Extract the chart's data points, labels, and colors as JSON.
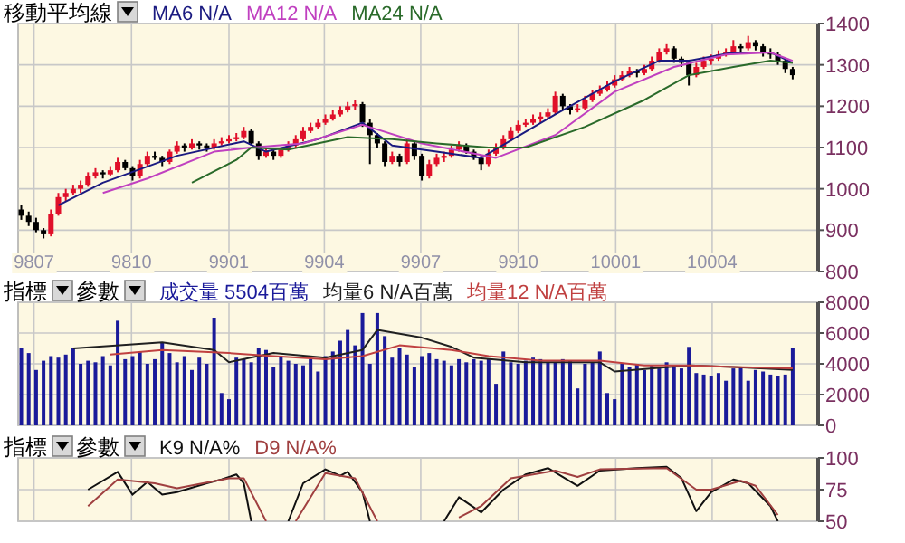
{
  "chart_data": [
    {
      "type": "candlestick",
      "title": "移動平均線",
      "legend": "top",
      "grid": true,
      "x": [
        "1998-06-19",
        "1998-06-26",
        "1998-07-03",
        "1998-07-10",
        "1998-07-17",
        "1998-07-24",
        "1998-07-31",
        "1998-08-07",
        "1998-08-14",
        "1998-08-21",
        "1998-08-28",
        "1998-09-04",
        "1998-09-11",
        "1998-09-18",
        "1998-09-25",
        "1998-10-02",
        "1998-10-09",
        "1998-10-16",
        "1998-10-23",
        "1998-10-30",
        "1998-11-06",
        "1998-11-13",
        "1998-11-20",
        "1998-11-27",
        "1998-12-04",
        "1998-12-11",
        "1998-12-18",
        "1998-12-25",
        "1999-01-01",
        "1999-01-08",
        "1999-01-15",
        "1999-01-22",
        "1999-01-29",
        "1999-02-05",
        "1999-02-12",
        "1999-02-19",
        "1999-02-26",
        "1999-03-05",
        "1999-03-12",
        "1999-03-19",
        "1999-03-26",
        "1999-04-02",
        "1999-04-09",
        "1999-04-16",
        "1999-04-23",
        "1999-04-30",
        "1999-05-07",
        "1999-05-14",
        "1999-05-21",
        "1999-05-28",
        "1999-06-04",
        "1999-06-11",
        "1999-06-18",
        "1999-06-25",
        "1999-07-02",
        "1999-07-09",
        "1999-07-16",
        "1999-07-23",
        "1999-07-30",
        "1999-08-06",
        "1999-08-13",
        "1999-08-20",
        "1999-08-27",
        "1999-09-03",
        "1999-09-10",
        "1999-09-17",
        "1999-09-24",
        "1999-10-01",
        "1999-10-08",
        "1999-10-15",
        "1999-10-22",
        "1999-10-29",
        "1999-11-05",
        "1999-11-12",
        "1999-11-19",
        "1999-11-26",
        "1999-12-03",
        "1999-12-10",
        "1999-12-17",
        "1999-12-24",
        "1999-12-31",
        "2000-01-07",
        "2000-01-14",
        "2000-01-21",
        "2000-01-28",
        "2000-02-04",
        "2000-02-11",
        "2000-02-18",
        "2000-02-25",
        "2000-03-03",
        "2000-03-10",
        "2000-03-17",
        "2000-03-24",
        "2000-03-31",
        "2000-04-07",
        "2000-04-14",
        "2000-04-21",
        "2000-04-28",
        "2000-05-05",
        "2000-05-12",
        "2000-05-19",
        "2000-05-26",
        "2000-06-02",
        "2000-06-09",
        "2000-06-16"
      ],
      "ohlc": [
        [
          950,
          960,
          925,
          935
        ],
        [
          935,
          945,
          910,
          920
        ],
        [
          920,
          930,
          895,
          900
        ],
        [
          900,
          905,
          880,
          890
        ],
        [
          890,
          950,
          885,
          940
        ],
        [
          940,
          990,
          935,
          980
        ],
        [
          980,
          1000,
          970,
          990
        ],
        [
          990,
          1010,
          985,
          1000
        ],
        [
          1000,
          1020,
          990,
          1010
        ],
        [
          1010,
          1040,
          1005,
          1030
        ],
        [
          1030,
          1050,
          1025,
          1040
        ],
        [
          1040,
          1045,
          1025,
          1035
        ],
        [
          1035,
          1055,
          1030,
          1045
        ],
        [
          1045,
          1075,
          1040,
          1065
        ],
        [
          1065,
          1070,
          1045,
          1050
        ],
        [
          1050,
          1055,
          1020,
          1030
        ],
        [
          1030,
          1070,
          1025,
          1060
        ],
        [
          1060,
          1090,
          1055,
          1080
        ],
        [
          1080,
          1090,
          1070,
          1075
        ],
        [
          1075,
          1080,
          1055,
          1065
        ],
        [
          1065,
          1095,
          1060,
          1090
        ],
        [
          1090,
          1115,
          1085,
          1105
        ],
        [
          1105,
          1110,
          1090,
          1100
        ],
        [
          1100,
          1120,
          1095,
          1110
        ],
        [
          1110,
          1115,
          1095,
          1105
        ],
        [
          1105,
          1110,
          1090,
          1100
        ],
        [
          1100,
          1120,
          1095,
          1110
        ],
        [
          1110,
          1125,
          1105,
          1115
        ],
        [
          1115,
          1130,
          1110,
          1120
        ],
        [
          1120,
          1135,
          1115,
          1125
        ],
        [
          1125,
          1150,
          1120,
          1140
        ],
        [
          1140,
          1145,
          1105,
          1110
        ],
        [
          1110,
          1115,
          1070,
          1080
        ],
        [
          1080,
          1100,
          1075,
          1090
        ],
        [
          1090,
          1095,
          1070,
          1080
        ],
        [
          1080,
          1100,
          1075,
          1095
        ],
        [
          1095,
          1115,
          1090,
          1105
        ],
        [
          1105,
          1130,
          1100,
          1120
        ],
        [
          1120,
          1150,
          1115,
          1140
        ],
        [
          1140,
          1160,
          1135,
          1150
        ],
        [
          1150,
          1170,
          1145,
          1160
        ],
        [
          1160,
          1180,
          1155,
          1170
        ],
        [
          1170,
          1190,
          1165,
          1180
        ],
        [
          1180,
          1200,
          1175,
          1190
        ],
        [
          1190,
          1210,
          1185,
          1200
        ],
        [
          1200,
          1215,
          1190,
          1205
        ],
        [
          1205,
          1210,
          1150,
          1160
        ],
        [
          1160,
          1170,
          1060,
          1130
        ],
        [
          1130,
          1135,
          1100,
          1110
        ],
        [
          1110,
          1115,
          1055,
          1065
        ],
        [
          1065,
          1090,
          1060,
          1080
        ],
        [
          1080,
          1085,
          1055,
          1065
        ],
        [
          1065,
          1120,
          1060,
          1110
        ],
        [
          1110,
          1115,
          1070,
          1080
        ],
        [
          1080,
          1085,
          1020,
          1030
        ],
        [
          1030,
          1070,
          1025,
          1060
        ],
        [
          1060,
          1085,
          1055,
          1075
        ],
        [
          1075,
          1090,
          1065,
          1080
        ],
        [
          1080,
          1105,
          1075,
          1095
        ],
        [
          1095,
          1115,
          1090,
          1105
        ],
        [
          1105,
          1110,
          1085,
          1090
        ],
        [
          1090,
          1095,
          1070,
          1075
        ],
        [
          1075,
          1080,
          1045,
          1060
        ],
        [
          1060,
          1095,
          1055,
          1085
        ],
        [
          1085,
          1110,
          1080,
          1100
        ],
        [
          1100,
          1130,
          1095,
          1120
        ],
        [
          1120,
          1150,
          1115,
          1140
        ],
        [
          1140,
          1165,
          1135,
          1155
        ],
        [
          1155,
          1170,
          1150,
          1160
        ],
        [
          1160,
          1180,
          1155,
          1170
        ],
        [
          1170,
          1185,
          1160,
          1175
        ],
        [
          1175,
          1195,
          1170,
          1185
        ],
        [
          1185,
          1235,
          1180,
          1225
        ],
        [
          1225,
          1230,
          1190,
          1200
        ],
        [
          1200,
          1205,
          1180,
          1190
        ],
        [
          1190,
          1205,
          1185,
          1195
        ],
        [
          1195,
          1225,
          1190,
          1215
        ],
        [
          1215,
          1240,
          1210,
          1230
        ],
        [
          1230,
          1250,
          1225,
          1240
        ],
        [
          1240,
          1260,
          1235,
          1250
        ],
        [
          1250,
          1275,
          1245,
          1265
        ],
        [
          1265,
          1285,
          1260,
          1275
        ],
        [
          1275,
          1295,
          1270,
          1285
        ],
        [
          1285,
          1290,
          1270,
          1280
        ],
        [
          1280,
          1300,
          1275,
          1290
        ],
        [
          1290,
          1320,
          1285,
          1310
        ],
        [
          1310,
          1340,
          1305,
          1330
        ],
        [
          1330,
          1350,
          1325,
          1340
        ],
        [
          1340,
          1345,
          1305,
          1315
        ],
        [
          1315,
          1320,
          1295,
          1305
        ],
        [
          1305,
          1310,
          1250,
          1275
        ],
        [
          1275,
          1305,
          1270,
          1295
        ],
        [
          1295,
          1320,
          1290,
          1310
        ],
        [
          1310,
          1325,
          1300,
          1315
        ],
        [
          1315,
          1335,
          1310,
          1325
        ],
        [
          1325,
          1340,
          1320,
          1330
        ],
        [
          1330,
          1360,
          1325,
          1345
        ],
        [
          1345,
          1350,
          1330,
          1340
        ],
        [
          1340,
          1370,
          1335,
          1355
        ],
        [
          1355,
          1360,
          1335,
          1345
        ],
        [
          1345,
          1350,
          1320,
          1330
        ],
        [
          1330,
          1340,
          1315,
          1325
        ],
        [
          1325,
          1330,
          1300,
          1310
        ],
        [
          1310,
          1315,
          1280,
          1290
        ],
        [
          1290,
          1295,
          1265,
          1275
        ]
      ],
      "colors": [
        "#000000",
        "#000000",
        "#000000",
        "#000000",
        "#e0102a",
        "#e0102a",
        "#e0102a",
        "#e0102a",
        "#e0102a",
        "#e0102a",
        "#e0102a",
        "#000000",
        "#e0102a",
        "#e0102a",
        "#000000",
        "#000000",
        "#e0102a",
        "#e0102a",
        "#000000",
        "#000000",
        "#e0102a",
        "#e0102a",
        "#000000",
        "#e0102a",
        "#000000",
        "#000000",
        "#e0102a",
        "#e0102a",
        "#e0102a",
        "#e0102a",
        "#e0102a",
        "#000000",
        "#000000",
        "#e0102a",
        "#000000",
        "#e0102a",
        "#e0102a",
        "#e0102a",
        "#e0102a",
        "#e0102a",
        "#e0102a",
        "#e0102a",
        "#e0102a",
        "#e0102a",
        "#e0102a",
        "#e0102a",
        "#000000",
        "#000000",
        "#000000",
        "#000000",
        "#e0102a",
        "#000000",
        "#e0102a",
        "#000000",
        "#000000",
        "#e0102a",
        "#e0102a",
        "#e0102a",
        "#e0102a",
        "#e0102a",
        "#000000",
        "#000000",
        "#000000",
        "#e0102a",
        "#e0102a",
        "#e0102a",
        "#e0102a",
        "#e0102a",
        "#e0102a",
        "#e0102a",
        "#e0102a",
        "#e0102a",
        "#e0102a",
        "#000000",
        "#000000",
        "#e0102a",
        "#e0102a",
        "#e0102a",
        "#e0102a",
        "#e0102a",
        "#e0102a",
        "#e0102a",
        "#e0102a",
        "#000000",
        "#e0102a",
        "#e0102a",
        "#e0102a",
        "#e0102a",
        "#000000",
        "#000000",
        "#000000",
        "#e0102a",
        "#e0102a",
        "#e0102a",
        "#e0102a",
        "#e0102a",
        "#e0102a",
        "#000000",
        "#e0102a",
        "#000000",
        "#000000",
        "#000000",
        "#000000",
        "#000000",
        "#000000"
      ],
      "series": [
        {
          "type": "line",
          "name": "MA6 N/A",
          "color": "#1a1a80",
          "x": [
            "1998-07-24",
            "1998-09-04",
            "1998-11-13",
            "1999-01-15",
            "1999-02-05",
            "1999-03-26",
            "1999-05-07",
            "1999-06-04",
            "1999-07-16",
            "1999-08-27",
            "1999-11-05",
            "1999-12-31",
            "2000-02-11",
            "2000-03-10",
            "2000-04-21",
            "2000-05-26",
            "2000-06-16"
          ],
          "values": [
            960,
            1015,
            1080,
            1115,
            1090,
            1120,
            1160,
            1105,
            1090,
            1075,
            1180,
            1260,
            1310,
            1310,
            1330,
            1330,
            1305
          ]
        },
        {
          "type": "line",
          "name": "MA12 N/A",
          "color": "#c040c0",
          "x": [
            "1998-09-04",
            "1998-10-16",
            "1998-12-18",
            "1999-01-22",
            "1999-03-12",
            "1999-05-07",
            "1999-07-02",
            "1999-09-10",
            "1999-11-05",
            "1999-12-31",
            "2000-02-25",
            "2000-04-14",
            "2000-05-26",
            "2000-06-16"
          ],
          "values": [
            990,
            1025,
            1090,
            1100,
            1110,
            1155,
            1110,
            1075,
            1130,
            1235,
            1295,
            1325,
            1330,
            1310
          ]
        },
        {
          "type": "line",
          "name": "MA24 N/A",
          "color": "#2a6a2a",
          "x": [
            "1998-11-27",
            "1999-01-08",
            "1999-01-22",
            "1999-02-26",
            "1999-04-23",
            "1999-06-04",
            "1999-07-16",
            "1999-09-03",
            "1999-10-08",
            "1999-12-03",
            "2000-01-28",
            "2000-03-10",
            "2000-04-21",
            "2000-05-26",
            "2000-06-16"
          ],
          "values": [
            1015,
            1070,
            1100,
            1095,
            1125,
            1120,
            1110,
            1100,
            1100,
            1150,
            1215,
            1275,
            1295,
            1310,
            1305
          ]
        }
      ],
      "xlim": [
        "1998-06-16",
        "2000-07-10"
      ],
      "xticks": [
        {
          "value": "1998-07-01",
          "label": "9807"
        },
        {
          "value": "1998-10-01",
          "label": "9810"
        },
        {
          "value": "1999-01-01",
          "label": "9901"
        },
        {
          "value": "1999-04-01",
          "label": "9904"
        },
        {
          "value": "1999-07-01",
          "label": "9907"
        },
        {
          "value": "1999-10-01",
          "label": "9910"
        },
        {
          "value": "2000-01-01",
          "label": "10001"
        },
        {
          "value": "2000-04-01",
          "label": "10004"
        }
      ],
      "ylim": [
        800,
        1400
      ],
      "yticks": [
        800,
        900,
        1000,
        1100,
        1200,
        1300,
        1400
      ]
    },
    {
      "type": "bar",
      "title": "指標",
      "subtitle": "參數",
      "legend": "top",
      "grid": true,
      "tick_labels": "y",
      "x": [
        "1998-06-19",
        "1998-06-26",
        "1998-07-03",
        "1998-07-10",
        "1998-07-17",
        "1998-07-24",
        "1998-07-31",
        "1998-08-07",
        "1998-08-14",
        "1998-08-21",
        "1998-08-28",
        "1998-09-04",
        "1998-09-11",
        "1998-09-18",
        "1998-09-25",
        "1998-10-02",
        "1998-10-09",
        "1998-10-16",
        "1998-10-23",
        "1998-10-30",
        "1998-11-06",
        "1998-11-13",
        "1998-11-20",
        "1998-11-27",
        "1998-12-04",
        "1998-12-11",
        "1998-12-18",
        "1998-12-25",
        "1999-01-01",
        "1999-01-08",
        "1999-01-15",
        "1999-01-22",
        "1999-01-29",
        "1999-02-05",
        "1999-02-12",
        "1999-02-19",
        "1999-02-26",
        "1999-03-05",
        "1999-03-12",
        "1999-03-19",
        "1999-03-26",
        "1999-04-02",
        "1999-04-09",
        "1999-04-16",
        "1999-04-23",
        "1999-04-30",
        "1999-05-07",
        "1999-05-14",
        "1999-05-21",
        "1999-05-28",
        "1999-06-04",
        "1999-06-11",
        "1999-06-18",
        "1999-06-25",
        "1999-07-02",
        "1999-07-09",
        "1999-07-16",
        "1999-07-23",
        "1999-07-30",
        "1999-08-06",
        "1999-08-13",
        "1999-08-20",
        "1999-08-27",
        "1999-09-03",
        "1999-09-10",
        "1999-09-17",
        "1999-09-24",
        "1999-10-01",
        "1999-10-08",
        "1999-10-15",
        "1999-10-22",
        "1999-10-29",
        "1999-11-05",
        "1999-11-12",
        "1999-11-19",
        "1999-11-26",
        "1999-12-03",
        "1999-12-10",
        "1999-12-17",
        "1999-12-24",
        "1999-12-31",
        "2000-01-07",
        "2000-01-14",
        "2000-01-21",
        "2000-01-28",
        "2000-02-04",
        "2000-02-11",
        "2000-02-18",
        "2000-02-25",
        "2000-03-03",
        "2000-03-10",
        "2000-03-17",
        "2000-03-24",
        "2000-03-31",
        "2000-04-07",
        "2000-04-14",
        "2000-04-21",
        "2000-04-28",
        "2000-05-05",
        "2000-05-12",
        "2000-05-19",
        "2000-05-26",
        "2000-06-02",
        "2000-06-09",
        "2000-06-16"
      ],
      "series": [
        {
          "type": "bar",
          "name": "成交量 5504百萬",
          "color": "#1a1a9a",
          "values": [
            5000,
            4700,
            3600,
            4200,
            4500,
            4400,
            4600,
            5000,
            4000,
            4200,
            4100,
            4500,
            3900,
            6800,
            4300,
            4500,
            4800,
            4000,
            4300,
            5400,
            4700,
            4100,
            4500,
            3600,
            4400,
            4000,
            7000,
            2100,
            1700,
            4400,
            4300,
            4100,
            5000,
            4900,
            3800,
            4500,
            4200,
            4000,
            3900,
            4300,
            3500,
            4500,
            4800,
            5500,
            6200,
            5200,
            7300,
            4000,
            7300,
            5800,
            4400,
            5000,
            4600,
            3800,
            4500,
            4700,
            4300,
            4200,
            3900,
            4300,
            4100,
            4300,
            4200,
            4300,
            2700,
            4800,
            4100,
            4000,
            4200,
            4400,
            4300,
            4100,
            4100,
            4300,
            4200,
            2400,
            4000,
            4100,
            4800,
            2100,
            1700,
            4000,
            3800,
            4000,
            3600,
            3900,
            3700,
            4100,
            3900,
            3700,
            5100,
            3400,
            3300,
            3200,
            3400,
            2900,
            3700,
            3800,
            2900,
            3600,
            3500,
            3300,
            3200,
            3300,
            5000
          ]
        },
        {
          "type": "line",
          "name": "均量6 N/A百萬",
          "color": "#202020",
          "x": [
            "1998-08-07",
            "1998-10-30",
            "1998-12-18",
            "1999-01-01",
            "1999-02-12",
            "1999-04-02",
            "1999-05-07",
            "1999-05-21",
            "1999-07-02",
            "1999-07-30",
            "1999-08-20",
            "1999-10-08",
            "1999-12-17",
            "1999-12-31",
            "2000-03-10",
            "2000-04-21",
            "2000-06-16"
          ],
          "values": [
            5000,
            5400,
            4900,
            4100,
            4700,
            4400,
            4900,
            6200,
            5700,
            5100,
            4400,
            4100,
            4100,
            3500,
            3900,
            3800,
            3600
          ]
        },
        {
          "type": "line",
          "name": "均量12 N/A百萬",
          "color": "#c04040",
          "x": [
            "1998-09-11",
            "1998-10-30",
            "1999-01-01",
            "1999-02-12",
            "1999-04-02",
            "1999-05-07",
            "1999-06-11",
            "1999-07-30",
            "1999-09-03",
            "1999-10-22",
            "1999-12-17",
            "2000-01-28",
            "2000-03-10",
            "2000-04-21",
            "2000-06-16"
          ],
          "values": [
            4600,
            4900,
            4700,
            4500,
            4300,
            4500,
            5200,
            4900,
            4500,
            4200,
            4200,
            3900,
            3900,
            3800,
            3700
          ]
        }
      ],
      "xlim": [
        "1998-06-16",
        "2000-07-10"
      ],
      "xticks": [
        {
          "value": "1998-07-01",
          "label": null
        },
        {
          "value": "1998-10-01",
          "label": null
        },
        {
          "value": "1999-01-01",
          "label": null
        },
        {
          "value": "1999-04-01",
          "label": null
        },
        {
          "value": "1999-07-01",
          "label": null
        },
        {
          "value": "1999-10-01",
          "label": null
        },
        {
          "value": "2000-01-01",
          "label": null
        },
        {
          "value": "2000-04-01",
          "label": null
        }
      ],
      "ylim": [
        0,
        8000
      ],
      "yticks": [
        0,
        2000,
        4000,
        6000,
        8000
      ]
    },
    {
      "type": "line",
      "title": "指標",
      "subtitle": "參數",
      "legend": "top",
      "grid": true,
      "tick_labels": "y",
      "series": [
        {
          "name": "K9 N/A%",
          "color": "#101010",
          "x": [
            "1998-08-21",
            "1998-09-18",
            "1998-10-02",
            "1998-10-16",
            "1998-10-30",
            "1998-11-13",
            "1998-12-11",
            "1998-12-25",
            "1999-01-08",
            "1999-01-15",
            "1999-01-22"
          ],
          "values": [
            75,
            89,
            71,
            81,
            71,
            73,
            80,
            83,
            87,
            80,
            50
          ]
        },
        {
          "color": "#101010",
          "x": [
            "1999-02-26",
            "1999-03-12",
            "1999-04-02",
            "1999-04-16",
            "1999-04-23",
            "1999-05-07",
            "1999-05-14"
          ],
          "values": [
            50,
            80,
            91,
            86,
            89,
            73,
            50
          ]
        },
        {
          "color": "#101010",
          "x": [
            "1999-07-23",
            "1999-08-06",
            "1999-08-27",
            "1999-09-17",
            "1999-10-08",
            "1999-10-29",
            "1999-11-26",
            "1999-12-17",
            "2000-01-21",
            "2000-02-18",
            "2000-03-03",
            "2000-03-17",
            "2000-03-31",
            "2000-04-21",
            "2000-05-05",
            "2000-05-26",
            "2000-06-02"
          ],
          "values": [
            50,
            69,
            57,
            75,
            87,
            92,
            78,
            90,
            92,
            93,
            84,
            58,
            73,
            83,
            80,
            62,
            50
          ]
        },
        {
          "name": "D9 N/A%",
          "color": "#a04040",
          "x": [
            "1998-08-21",
            "1998-09-18",
            "1998-10-23",
            "1998-11-13",
            "1999-01-01",
            "1999-01-15",
            "1999-02-05"
          ],
          "values": [
            62,
            83,
            80,
            76,
            84,
            84,
            50
          ]
        },
        {
          "color": "#a04040",
          "x": [
            "1999-03-05",
            "1999-04-02",
            "1999-04-30",
            "1999-05-21"
          ],
          "values": [
            50,
            88,
            84,
            50
          ]
        },
        {
          "color": "#a04040",
          "x": [
            "1999-08-06",
            "1999-08-27",
            "1999-09-24",
            "1999-11-05",
            "1999-11-26",
            "1999-12-17",
            "2000-02-18",
            "2000-03-17",
            "2000-03-31",
            "2000-04-28",
            "2000-05-12",
            "2000-06-02"
          ],
          "values": [
            53,
            62,
            84,
            90,
            85,
            91,
            92,
            75,
            75,
            82,
            78,
            55
          ]
        }
      ],
      "xlim": [
        "1998-06-16",
        "2000-07-10"
      ],
      "xticks": [
        {
          "value": "1998-07-01",
          "label": null
        },
        {
          "value": "1998-10-01",
          "label": null
        },
        {
          "value": "1999-01-01",
          "label": null
        },
        {
          "value": "1999-04-01",
          "label": null
        },
        {
          "value": "1999-07-01",
          "label": null
        },
        {
          "value": "1999-10-01",
          "label": null
        },
        {
          "value": "2000-01-01",
          "label": null
        },
        {
          "value": "2000-04-01",
          "label": null
        }
      ],
      "ylim": [
        50,
        100
      ],
      "yticks": [
        50,
        75,
        100
      ]
    }
  ]
}
